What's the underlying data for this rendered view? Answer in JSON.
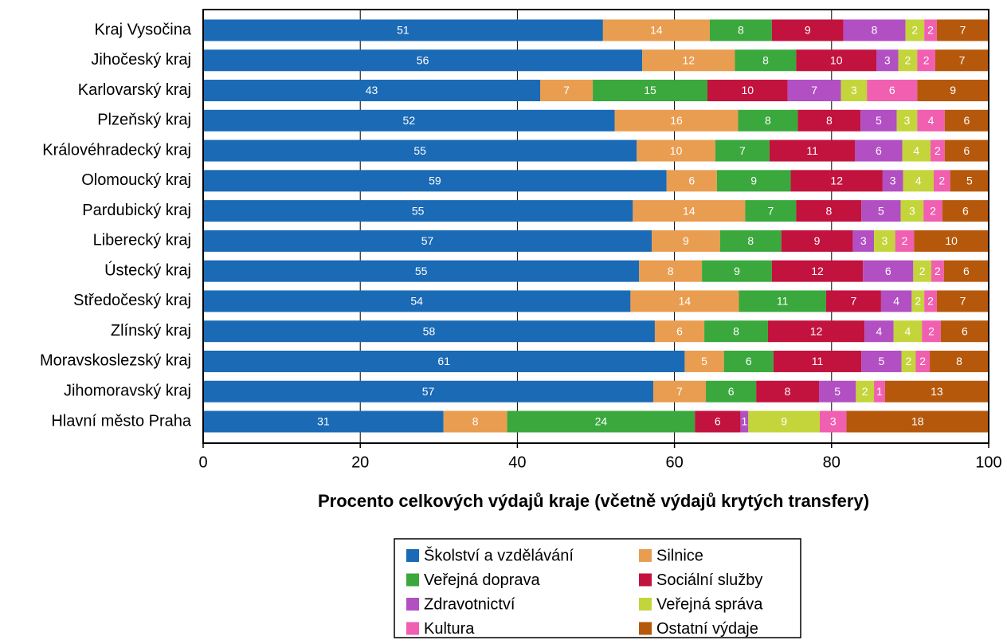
{
  "chart_data": {
    "type": "stacked-bar-horizontal",
    "xlabel": "Procento celkových výdajů kraje (včetně výdajů krytých transfery)",
    "categories": [
      "Kraj Vysočina",
      "Jihočeský kraj",
      "Karlovarský kraj",
      "Plzeňský kraj",
      "Královéhradecký kraj",
      "Olomoucký kraj",
      "Pardubický kraj",
      "Liberecký kraj",
      "Ústecký kraj",
      "Středočeský kraj",
      "Zlínský kraj",
      "Moravskoslezský kraj",
      "Jihomoravský kraj",
      "Hlavní město Praha"
    ],
    "xlim": [
      0,
      100
    ],
    "xticks": [
      0,
      20,
      40,
      60,
      80,
      100
    ],
    "grid": true,
    "series": [
      {
        "name": "Školství a vzdělávání",
        "color": "#1b6ab5",
        "values": [
          50.9,
          55.9,
          42.9,
          52.4,
          55.2,
          59.0,
          54.7,
          57.1,
          55.5,
          54.4,
          57.5,
          61.3,
          57.3,
          30.6
        ],
        "value_labels": [
          "51",
          "56",
          "43",
          "52",
          "55",
          "59",
          "55",
          "57",
          "55",
          "54",
          "58",
          "61",
          "57",
          "31"
        ]
      },
      {
        "name": "Silnice",
        "color": "#e99d50",
        "values": [
          13.6,
          11.8,
          6.7,
          15.7,
          10.0,
          6.4,
          14.3,
          8.7,
          8.0,
          13.8,
          6.3,
          5.0,
          6.7,
          8.1
        ],
        "value_labels": [
          "14",
          "12",
          "7",
          "16",
          "10",
          "6",
          "14",
          "9",
          "8",
          "14",
          "6",
          "5",
          "7",
          "8"
        ]
      },
      {
        "name": "Veřejná doprava",
        "color": "#3aa83c",
        "values": [
          7.9,
          7.8,
          14.6,
          7.6,
          6.9,
          9.4,
          6.5,
          7.8,
          8.9,
          11.1,
          8.1,
          6.3,
          6.4,
          23.9
        ],
        "value_labels": [
          "8",
          "8",
          "15",
          "8",
          "7",
          "9",
          "7",
          "8",
          "9",
          "11",
          "8",
          "6",
          "6",
          "24"
        ]
      },
      {
        "name": "Sociální služby",
        "color": "#c2123e",
        "values": [
          9.1,
          10.2,
          10.2,
          8.0,
          10.9,
          11.7,
          8.3,
          9.1,
          11.6,
          7.0,
          12.3,
          11.2,
          8.0,
          5.8
        ],
        "value_labels": [
          "9",
          "10",
          "10",
          "8",
          "11",
          "12",
          "8",
          "9",
          "12",
          "7",
          "12",
          "11",
          "8",
          "6"
        ]
      },
      {
        "name": "Zdravotnictví",
        "color": "#b24fc2",
        "values": [
          7.9,
          2.8,
          6.8,
          4.6,
          6.0,
          2.6,
          5.0,
          2.7,
          6.4,
          3.9,
          3.7,
          5.1,
          4.7,
          1.0
        ],
        "value_labels": [
          "8",
          "3",
          "7",
          "5",
          "6",
          "3",
          "5",
          "3",
          "6",
          "4",
          "4",
          "5",
          "5",
          "1"
        ]
      },
      {
        "name": "Veřejná správa",
        "color": "#c3d53a",
        "values": [
          2.4,
          2.4,
          3.3,
          2.6,
          3.6,
          3.9,
          2.9,
          2.7,
          2.3,
          1.6,
          3.6,
          1.8,
          2.3,
          9.1
        ],
        "value_labels": [
          "2",
          "2",
          "3",
          "3",
          "4",
          "4",
          "3",
          "3",
          "2",
          "2",
          "4",
          "2",
          "2",
          "9"
        ]
      },
      {
        "name": "Kultura",
        "color": "#f05fb0",
        "values": [
          1.6,
          2.3,
          6.4,
          3.5,
          1.8,
          2.1,
          2.4,
          2.4,
          1.6,
          1.6,
          2.4,
          1.8,
          1.4,
          3.4
        ],
        "value_labels": [
          "2",
          "2",
          "6",
          "4",
          "2",
          "2",
          "2",
          "2",
          "2",
          "2",
          "2",
          "2",
          "1",
          "3"
        ]
      },
      {
        "name": "Ostatní výdaje",
        "color": "#b5580c",
        "values": [
          6.6,
          6.8,
          9.1,
          5.6,
          5.6,
          4.9,
          5.9,
          9.5,
          5.7,
          6.6,
          6.1,
          7.5,
          13.2,
          18.1
        ],
        "value_labels": [
          "7",
          "7",
          "9",
          "6",
          "6",
          "5",
          "6",
          "10",
          "6",
          "7",
          "6",
          "8",
          "13",
          "18"
        ]
      }
    ]
  }
}
